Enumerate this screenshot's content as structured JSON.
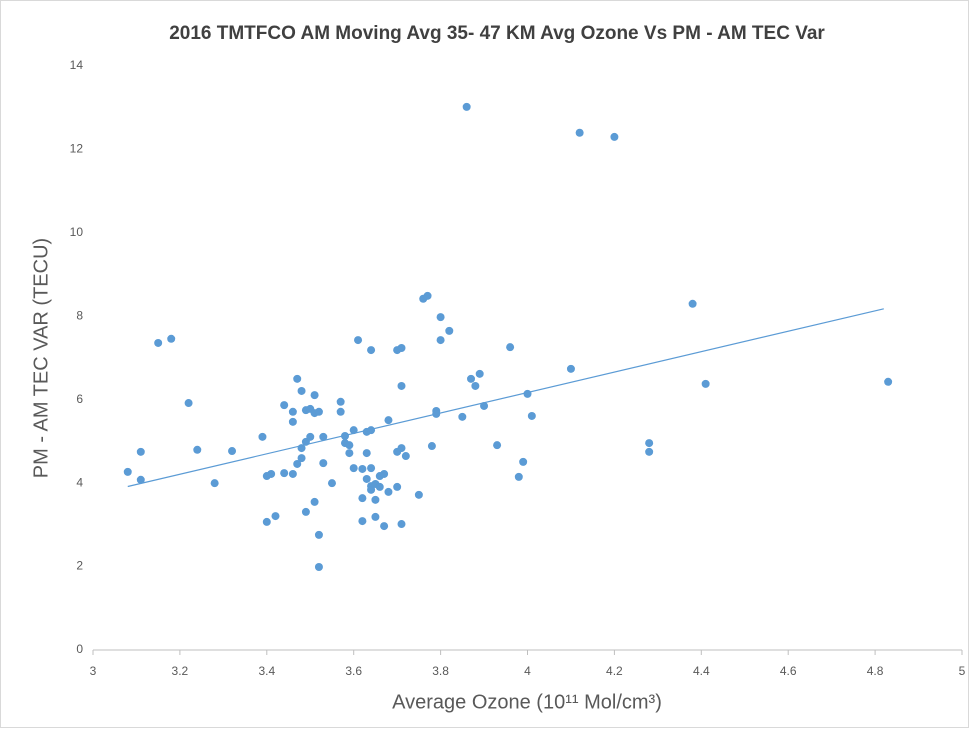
{
  "chart_data": {
    "type": "scatter",
    "title": "2016 TMTFCO AM Moving Avg 35- 47 KM Avg Ozone Vs PM - AM TEC Var",
    "x_label": "Average Ozone (10¹¹ Mol/cm³)",
    "y_label": "PM - AM TEC VAR (TECU)",
    "xlim": [
      3,
      5
    ],
    "ylim": [
      0,
      14
    ],
    "xticks": [
      3,
      3.2,
      3.4,
      3.6,
      3.8,
      4,
      4.2,
      4.4,
      4.6,
      4.8,
      5
    ],
    "yticks": [
      0,
      2,
      4,
      6,
      8,
      10,
      12,
      14
    ],
    "grid": false,
    "color": "#5b9bd5",
    "x": [
      3.08,
      3.11,
      3.11,
      3.15,
      3.18,
      3.22,
      3.24,
      3.28,
      3.32,
      3.39,
      3.4,
      3.4,
      3.41,
      3.42,
      3.44,
      3.44,
      3.46,
      3.46,
      3.46,
      3.47,
      3.47,
      3.48,
      3.48,
      3.48,
      3.49,
      3.49,
      3.49,
      3.5,
      3.5,
      3.51,
      3.51,
      3.51,
      3.52,
      3.52,
      3.52,
      3.53,
      3.53,
      3.55,
      3.57,
      3.57,
      3.58,
      3.58,
      3.59,
      3.59,
      3.6,
      3.6,
      3.61,
      3.62,
      3.62,
      3.62,
      3.63,
      3.63,
      3.63,
      3.64,
      3.64,
      3.64,
      3.64,
      3.64,
      3.65,
      3.65,
      3.65,
      3.66,
      3.66,
      3.67,
      3.67,
      3.68,
      3.68,
      3.7,
      3.7,
      3.7,
      3.71,
      3.71,
      3.71,
      3.71,
      3.72,
      3.75,
      3.76,
      3.77,
      3.78,
      3.79,
      3.79,
      3.8,
      3.8,
      3.82,
      3.85,
      3.86,
      3.87,
      3.88,
      3.89,
      3.9,
      3.93,
      3.96,
      3.98,
      3.99,
      4.0,
      4.01,
      4.1,
      4.12,
      4.2,
      4.28,
      4.28,
      4.38,
      4.41,
      4.83
    ],
    "values": [
      4.27,
      4.75,
      4.08,
      7.36,
      7.46,
      5.92,
      4.8,
      4.0,
      4.77,
      5.11,
      3.07,
      4.17,
      4.22,
      3.21,
      4.24,
      5.87,
      5.71,
      5.47,
      4.22,
      4.46,
      6.5,
      6.21,
      4.84,
      4.6,
      3.31,
      5.75,
      4.99,
      5.11,
      5.78,
      5.68,
      6.11,
      3.55,
      5.71,
      2.76,
      1.99,
      5.11,
      4.48,
      4.0,
      5.95,
      5.71,
      5.13,
      4.96,
      4.72,
      4.91,
      4.36,
      5.27,
      7.43,
      3.09,
      4.34,
      3.64,
      4.72,
      4.1,
      5.23,
      4.36,
      7.19,
      3.93,
      5.27,
      3.84,
      3.19,
      3.98,
      3.6,
      3.91,
      4.17,
      2.97,
      4.22,
      3.79,
      5.51,
      7.19,
      4.75,
      3.91,
      3.02,
      7.24,
      6.33,
      4.84,
      4.65,
      3.72,
      8.42,
      8.49,
      4.89,
      5.73,
      5.66,
      7.43,
      7.98,
      7.65,
      5.59,
      13.02,
      6.5,
      6.33,
      6.62,
      5.85,
      4.91,
      7.26,
      4.15,
      4.51,
      6.14,
      5.61,
      6.74,
      12.4,
      12.3,
      4.96,
      4.75,
      8.3,
      6.38,
      6.43
    ],
    "trendline": {
      "x": [
        3.08,
        4.82
      ],
      "y": [
        3.92,
        8.18
      ],
      "color": "#5b9bd5"
    }
  }
}
